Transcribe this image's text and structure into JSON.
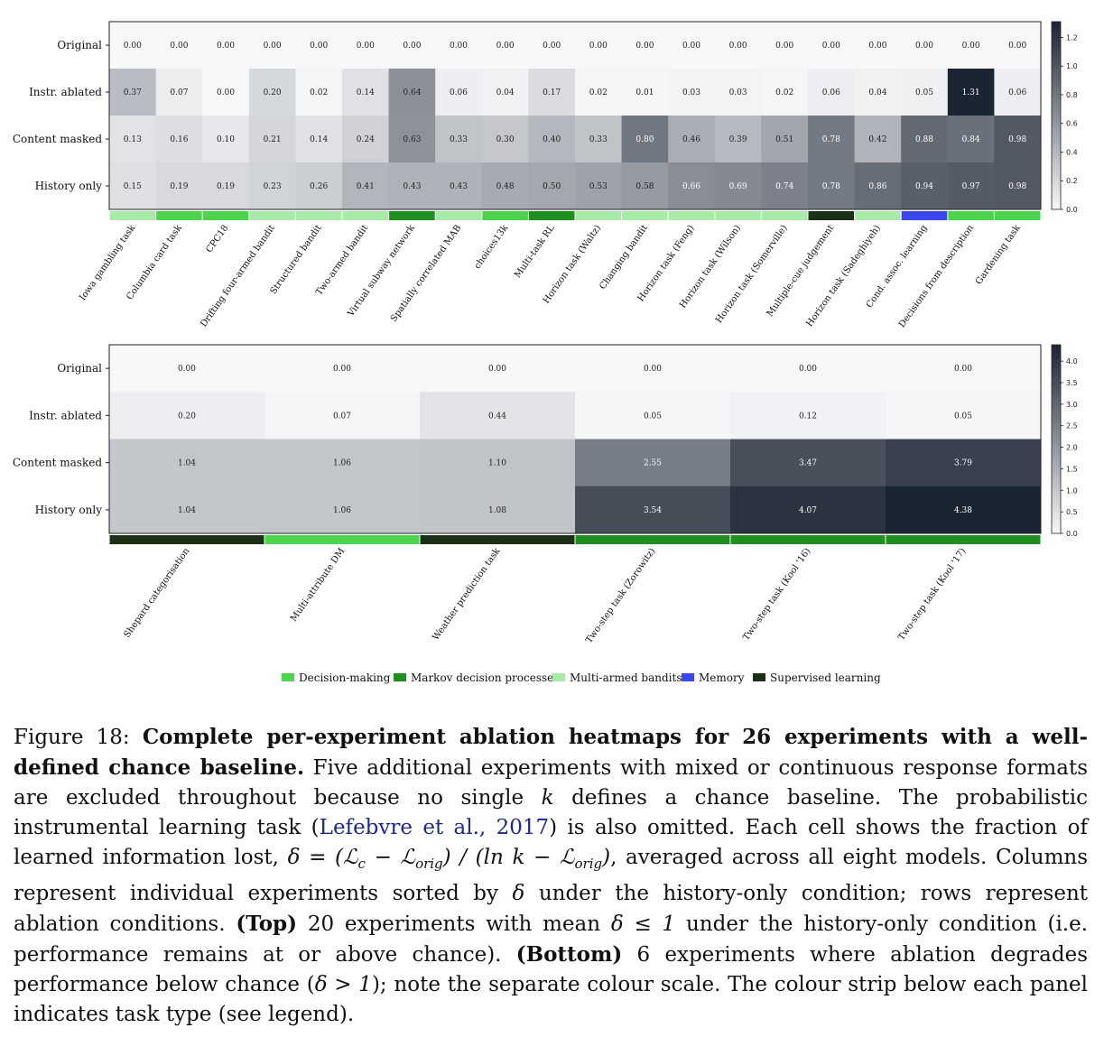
{
  "chart_data": [
    {
      "type": "heatmap",
      "panel": "top",
      "rows": [
        "Original",
        "Instr. ablated",
        "Content masked",
        "History only"
      ],
      "columns": [
        "Iowa gambling task",
        "Columbia card task",
        "CPC18",
        "Drifting four-armed bandit",
        "Structured bandit",
        "Two-armed bandit",
        "Virtual subway network",
        "Spatially correlated MAB",
        "choices13k",
        "Multi-task RL",
        "Horizon task (Waltz)",
        "Changing bandit",
        "Horizon task (Feng)",
        "Horizon task (Wilson)",
        "Horizon task (Somerville)",
        "Multiple-cue judgement",
        "Horizon task (Sadeghiyeh)",
        "Cond. assoc. learning",
        "Decisions from description",
        "Gardening task"
      ],
      "values": [
        [
          "0.00",
          "0.00",
          "0.00",
          "0.00",
          "0.00",
          "0.00",
          "0.00",
          "0.00",
          "0.00",
          "0.00",
          "0.00",
          "0.00",
          "0.00",
          "0.00",
          "0.00",
          "0.00",
          "0.00",
          "0.00",
          "0.00",
          "0.00"
        ],
        [
          "0.37",
          "0.07",
          "0.00",
          "0.20",
          "0.02",
          "0.14",
          "0.64",
          "0.06",
          "0.04",
          "0.17",
          "0.02",
          "0.01",
          "0.03",
          "0.03",
          "0.02",
          "0.06",
          "0.04",
          "0.05",
          "1.31",
          "0.06"
        ],
        [
          "0.13",
          "0.16",
          "0.10",
          "0.21",
          "0.14",
          "0.24",
          "0.63",
          "0.33",
          "0.30",
          "0.40",
          "0.33",
          "0.80",
          "0.46",
          "0.39",
          "0.51",
          "0.78",
          "0.42",
          "0.88",
          "0.84",
          "0.98"
        ],
        [
          "0.15",
          "0.19",
          "0.19",
          "0.23",
          "0.26",
          "0.41",
          "0.43",
          "0.43",
          "0.48",
          "0.50",
          "0.53",
          "0.58",
          "0.66",
          "0.69",
          "0.74",
          "0.78",
          "0.86",
          "0.94",
          "0.97",
          "0.98"
        ]
      ],
      "task_types": [
        "Multi-armed bandits",
        "Decision-making",
        "Decision-making",
        "Multi-armed bandits",
        "Multi-armed bandits",
        "Multi-armed bandits",
        "Markov decision processes",
        "Multi-armed bandits",
        "Decision-making",
        "Markov decision processes",
        "Multi-armed bandits",
        "Multi-armed bandits",
        "Multi-armed bandits",
        "Multi-armed bandits",
        "Multi-armed bandits",
        "Supervised learning",
        "Multi-armed bandits",
        "Memory",
        "Decision-making",
        "Decision-making"
      ],
      "color_range": [
        0,
        1.31
      ],
      "colorbar_ticks": [
        "0.0",
        "0.2",
        "0.4",
        "0.6",
        "0.8",
        "1.0",
        "1.2"
      ]
    },
    {
      "type": "heatmap",
      "panel": "bottom",
      "rows": [
        "Original",
        "Instr. ablated",
        "Content masked",
        "History only"
      ],
      "columns": [
        "Shepard categorisation",
        "Multi-attribute DM",
        "Weather prediction task",
        "Two-step task (Zorowitz)",
        "Two-step task (Kool '16)",
        "Two-step task (Kool '17)"
      ],
      "values": [
        [
          "0.00",
          "0.00",
          "0.00",
          "0.00",
          "0.00",
          "0.00"
        ],
        [
          "0.20",
          "0.07",
          "0.44",
          "0.05",
          "0.12",
          "0.05"
        ],
        [
          "1.04",
          "1.06",
          "1.10",
          "2.55",
          "3.47",
          "3.79"
        ],
        [
          "1.04",
          "1.06",
          "1.08",
          "3.54",
          "4.07",
          "4.38"
        ]
      ],
      "task_types": [
        "Supervised learning",
        "Decision-making",
        "Supervised learning",
        "Markov decision processes",
        "Markov decision processes",
        "Markov decision processes"
      ],
      "color_range": [
        0,
        4.38
      ],
      "colorbar_ticks": [
        "0.0",
        "0.5",
        "1.0",
        "1.5",
        "2.0",
        "2.5",
        "3.0",
        "3.5",
        "4.0"
      ]
    }
  ],
  "legend": [
    {
      "label": "Decision-making",
      "color": "#4cd44c"
    },
    {
      "label": "Markov decision processes",
      "color": "#1f8f1f"
    },
    {
      "label": "Multi-armed bandits",
      "color": "#a8eba8"
    },
    {
      "label": "Memory",
      "color": "#3c46ee"
    },
    {
      "label": "Supervised learning",
      "color": "#1c3018"
    }
  ],
  "colors": {
    "heat_low": "#f7f8fa",
    "heat_high": "#1b2433"
  },
  "caption": {
    "label": "Figure 18:",
    "bold": "Complete per-experiment ablation heatmaps for 26 experiments with a well-defined chance baseline.",
    "s1": "Five additional experiments with mixed or continuous response formats are excluded throughout because no single",
    "k1": "k",
    "s2": "defines a chance baseline. The probabilistic instrumental learning task (",
    "cite": "Lefebvre et al., 2017",
    "s3": ") is also omitted. Each cell shows the fraction of learned information lost,",
    "eq_a": "δ = (ℒ",
    "eq_sub_c": "c",
    "eq_b": " − ℒ",
    "eq_sub_orig1": "orig",
    "eq_c": ") / (ln ",
    "eq_k": "k",
    "eq_d": " − ℒ",
    "eq_sub_orig2": "orig",
    "eq_e": ")",
    "s4": ", averaged across all eight models. Columns represent individual experiments sorted by",
    "delta1": "δ",
    "s5": "under the history-only condition; rows represent ablation conditions.",
    "top_bold": "(Top)",
    "s6": "20 experiments with mean",
    "ineq1": "δ ≤ 1",
    "s7": "under the history-only condition (i.e. performance remains at or above chance).",
    "bottom_bold": "(Bottom)",
    "s8": "6 experiments where ablation degrades performance below chance (",
    "ineq2": "δ > 1",
    "s9": "); note the separate colour scale. The colour strip below each panel indicates task type (see legend)."
  }
}
